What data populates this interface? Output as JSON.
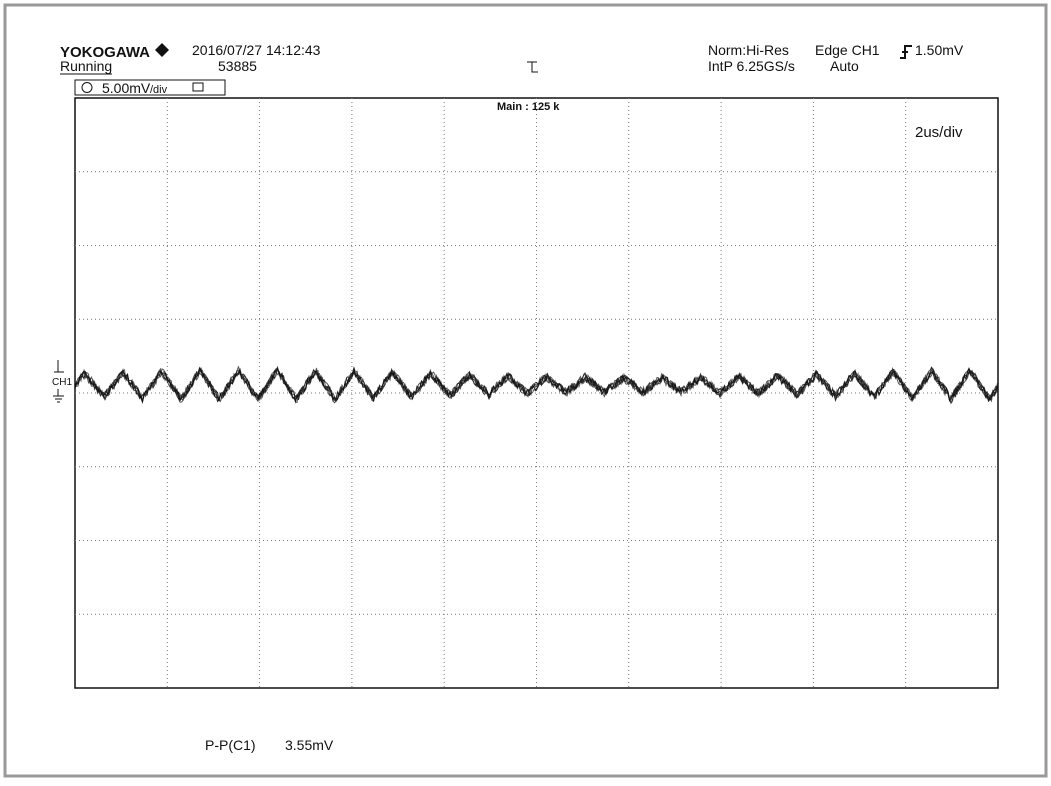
{
  "header": {
    "brand": "YOKOGAWA",
    "datetime": "2016/07/27 14:12:43",
    "status": "Running",
    "count": "53885",
    "mode": "Norm:Hi-Res",
    "trigger": "Edge CH1",
    "trigger_level": "1.50mV",
    "sampling": "IntP 6.25GS/s",
    "trigger_mode": "Auto"
  },
  "channel": {
    "scale": "5.00mV",
    "scale_unit": "/div",
    "label": "CH1"
  },
  "screen": {
    "record": "Main : 125 k",
    "timebase": "2us/div"
  },
  "measurement": {
    "name": "P-P(C1)",
    "value": "3.55mV"
  }
}
